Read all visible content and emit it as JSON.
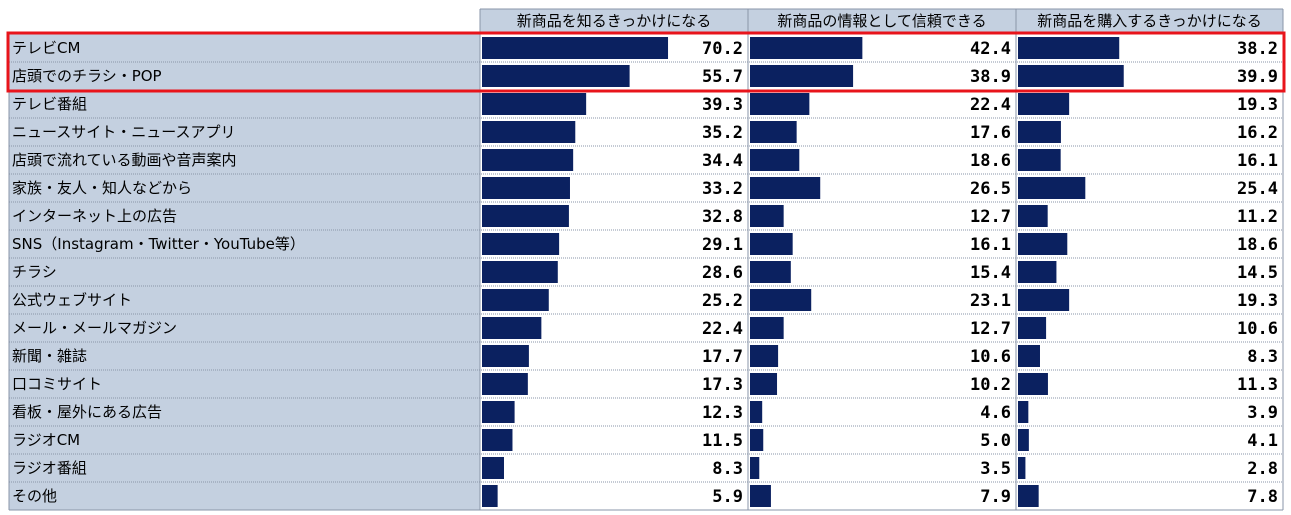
{
  "chart_data": {
    "type": "bar",
    "orientation": "horizontal",
    "layout": "table-with-bars",
    "series": [
      {
        "name": "新商品を知るきっかけになる",
        "values": [
          70.2,
          55.7,
          39.3,
          35.2,
          34.4,
          33.2,
          32.8,
          29.1,
          28.6,
          25.2,
          22.4,
          17.7,
          17.3,
          12.3,
          11.5,
          8.3,
          5.9
        ]
      },
      {
        "name": "新商品の情報として信頼できる",
        "values": [
          42.4,
          38.9,
          22.4,
          17.6,
          18.6,
          26.5,
          12.7,
          16.1,
          15.4,
          23.1,
          12.7,
          10.6,
          10.2,
          4.6,
          5.0,
          3.5,
          7.9
        ]
      },
      {
        "name": "新商品を購入するきっかけになる",
        "values": [
          38.2,
          39.9,
          19.3,
          16.2,
          16.1,
          25.4,
          11.2,
          18.6,
          14.5,
          19.3,
          10.6,
          8.3,
          11.3,
          3.9,
          4.1,
          2.8,
          7.8
        ]
      }
    ],
    "categories": [
      "テレビCM",
      "店頭でのチラシ・POP",
      "テレビ番組",
      "ニュースサイト・ニュースアプリ",
      "店頭で流れている動画や音声案内",
      "家族・友人・知人などから",
      "インターネット上の広告",
      "SNS（Instagram・Twitter・YouTube等）",
      "チラシ",
      "公式ウェブサイト",
      "メール・メールマガジン",
      "新聞・雑誌",
      "口コミサイト",
      "看板・屋外にある広告",
      "ラジオCM",
      "ラジオ番組",
      "その他"
    ],
    "highlighted_rows": [
      0,
      1
    ],
    "xlim": [
      0,
      100
    ],
    "colors": {
      "bar": "#0b2160",
      "label_bg": "#c4d0e0",
      "highlight": "#e8141b",
      "grid": "#8a96a8"
    }
  }
}
